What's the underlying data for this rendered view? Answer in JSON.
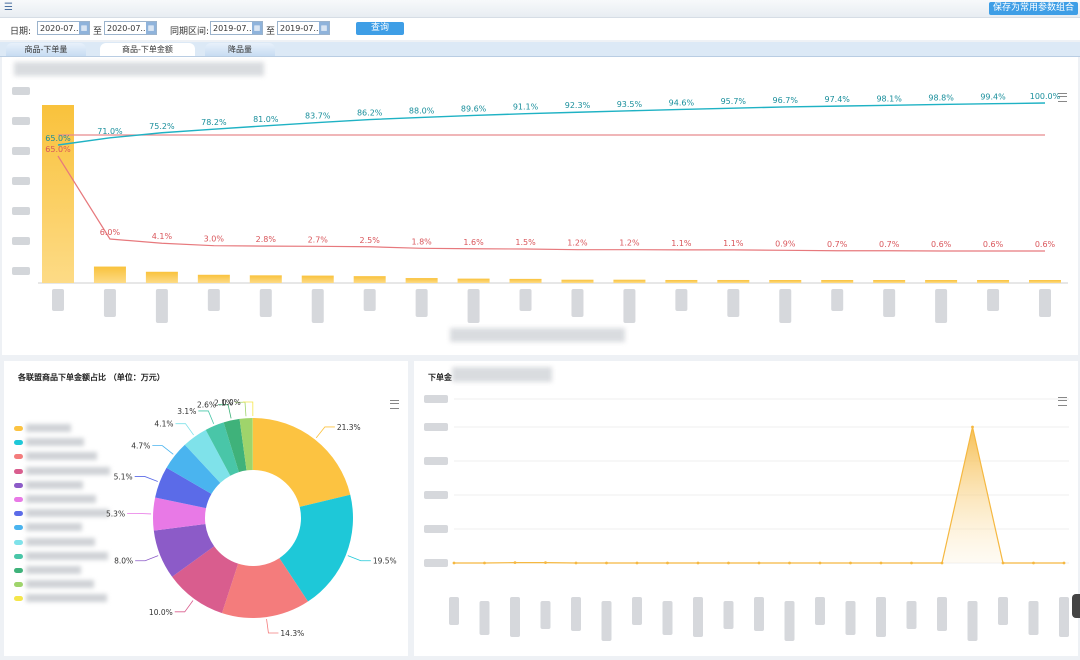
{
  "toolbar": {
    "save_label": "保存为常用参数组合"
  },
  "filters": {
    "date_label": "日期:",
    "date_from": "2020-07...",
    "sep1": "至",
    "date_to": "2020-07...",
    "compare_label": "同期区间:",
    "compare_from": "2019-07...",
    "sep2": "至",
    "compare_to": "2019-07...",
    "query_label": "查询"
  },
  "tabs": [
    {
      "label": "商品-下单量",
      "active": false
    },
    {
      "label": "商品-下单金额",
      "active": true
    },
    {
      "label": "降品量",
      "active": false
    }
  ],
  "pareto": {
    "chart_data": {
      "type": "bar",
      "bar_color": "#f5b841",
      "cumulative_color": "#1fb2c4",
      "share_color": "#e7797d",
      "bars": [
        65.0,
        6.0,
        4.1,
        3.0,
        2.8,
        2.7,
        2.5,
        1.8,
        1.6,
        1.5,
        1.2,
        1.2,
        1.1,
        1.1,
        0.9,
        0.7,
        0.7,
        0.6,
        0.6,
        0.6
      ],
      "cumulative_labels": [
        "65.0%",
        "71.0%",
        "75.2%",
        "78.2%",
        "81.0%",
        "83.7%",
        "86.2%",
        "88.0%",
        "89.6%",
        "91.1%",
        "92.3%",
        "93.5%",
        "94.6%",
        "95.7%",
        "96.7%",
        "97.4%",
        "98.1%",
        "98.8%",
        "99.4%",
        "100.0%"
      ],
      "cumulative_values": [
        65.0,
        71.0,
        75.2,
        78.2,
        81.0,
        83.7,
        86.2,
        88.0,
        89.6,
        91.1,
        92.3,
        93.5,
        94.6,
        95.7,
        96.7,
        97.4,
        98.1,
        98.8,
        99.4,
        100.0
      ],
      "share_labels": [
        "65.0%",
        "6.0%",
        "4.1%",
        "3.0%",
        "2.8%",
        "2.7%",
        "2.5%",
        "1.8%",
        "1.6%",
        "1.5%",
        "1.2%",
        "1.2%",
        "1.1%",
        "1.1%",
        "0.9%",
        "0.7%",
        "0.7%",
        "0.6%",
        "0.6%",
        "0.6%"
      ],
      "share_values": [
        65.0,
        6.0,
        4.1,
        3.0,
        2.8,
        2.7,
        2.5,
        1.8,
        1.6,
        1.5,
        1.2,
        1.2,
        1.1,
        1.1,
        0.9,
        0.7,
        0.7,
        0.6,
        0.6,
        0.6
      ],
      "reference_line": 80
    }
  },
  "donut": {
    "title": "各联盟商品下单金额占比 （单位：万元）",
    "chart_data": {
      "type": "pie",
      "slices": [
        {
          "label": "21.3%",
          "value": 21.3,
          "color": "#fcc341"
        },
        {
          "label": "19.5%",
          "value": 19.5,
          "color": "#1ec8d8"
        },
        {
          "label": "14.3%",
          "value": 14.3,
          "color": "#f47c7c"
        },
        {
          "label": "10.0%",
          "value": 10.0,
          "color": "#d95d8e"
        },
        {
          "label": "8.0%",
          "value": 8.0,
          "color": "#8c5bc8"
        },
        {
          "label": "5.3%",
          "value": 5.3,
          "color": "#e879e6"
        },
        {
          "label": "5.1%",
          "value": 5.1,
          "color": "#5b6be8"
        },
        {
          "label": "4.7%",
          "value": 4.7,
          "color": "#4ab4ef"
        },
        {
          "label": "4.1%",
          "value": 4.1,
          "color": "#7fe2ea"
        },
        {
          "label": "3.1%",
          "value": 3.1,
          "color": "#49c6a8"
        },
        {
          "label": "2.6%",
          "value": 2.6,
          "color": "#3fb27a"
        },
        {
          "label": "2.1%",
          "value": 2.1,
          "color": "#9fd46b"
        },
        {
          "label": "0.0%",
          "value": 0.05,
          "color": "#f5e64a"
        }
      ]
    }
  },
  "trend": {
    "title": "下单金",
    "chart_data": {
      "type": "area",
      "line_color": "#f5b841",
      "values": [
        0,
        0,
        0.3,
        0.3,
        0,
        0,
        0,
        0,
        0,
        0,
        0,
        0,
        0,
        0,
        0,
        0,
        0,
        100,
        0,
        0,
        0
      ]
    }
  }
}
